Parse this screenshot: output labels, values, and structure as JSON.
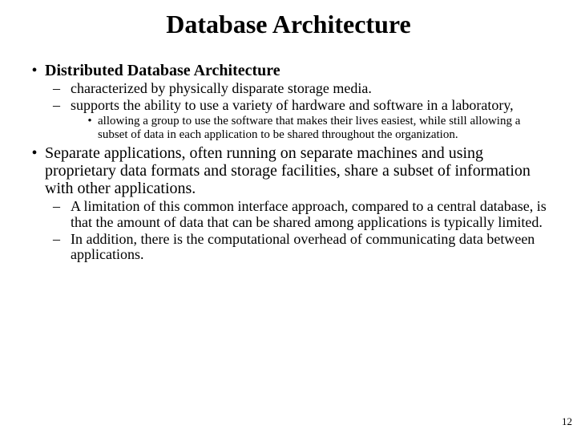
{
  "slide": {
    "title": "Database Architecture",
    "page_number": "12",
    "background_color": "#ffffff",
    "text_color": "#000000",
    "font_family": "Times New Roman",
    "title_fontsize": 32,
    "l1_fontsize": 20,
    "l2_fontsize": 18,
    "l3_fontsize": 15
  },
  "content": {
    "b1": "Distributed Database Architecture",
    "b1_1": "characterized by physically disparate storage media.",
    "b1_2": "supports the ability to use a variety of hardware and software in a laboratory,",
    "b1_2_1": "allowing a group to use the software that makes their lives easiest, while still allowing a subset of data in each application to be shared throughout the organization.",
    "b2": "Separate applications, often running on separate machines and using proprietary data formats and storage facilities, share a subset of information with other applications.",
    "b2_1": "A limitation of this common interface approach, compared to a central database, is that the amount of data that can be shared among applications is typically limited.",
    "b2_2": "In addition, there is the computational overhead of communicating data between applications."
  }
}
